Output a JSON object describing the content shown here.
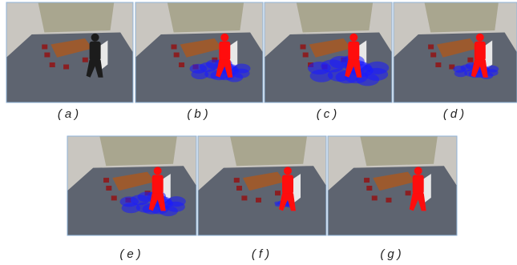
{
  "figure": {
    "captions": [
      "(a)",
      "(b)",
      "(c)",
      "(d)",
      "(e)",
      "(f)",
      "(g)"
    ]
  }
}
